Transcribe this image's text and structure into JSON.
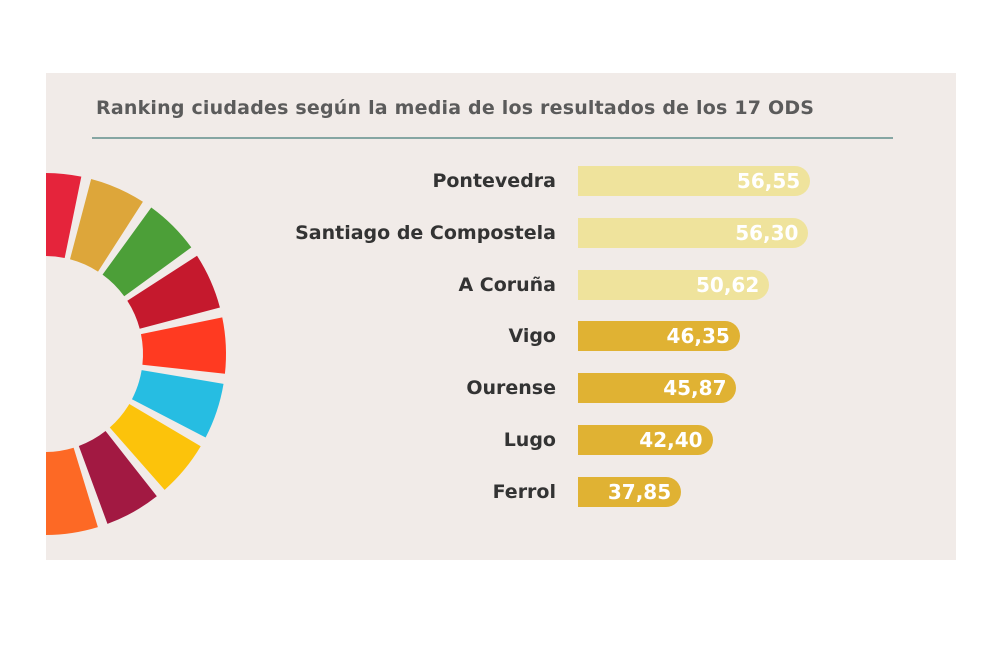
{
  "chart_data": {
    "type": "bar",
    "orientation": "horizontal",
    "title": "Ranking ciudades según la media de los resultados de los 17 ODS",
    "categories": [
      "Pontevedra",
      "Santiago de Compostela",
      "A Coruña",
      "Vigo",
      "Ourense",
      "Lugo",
      "Ferrol"
    ],
    "values": [
      56.55,
      56.3,
      50.62,
      46.35,
      45.87,
      42.4,
      37.85
    ],
    "value_labels": [
      "56,55",
      "56,30",
      "50,62",
      "46,35",
      "45,87",
      "42,40",
      "37,85"
    ],
    "highlight": [
      true,
      true,
      true,
      false,
      false,
      false,
      false
    ],
    "xlabel": "",
    "ylabel": "",
    "grid": false,
    "colors": {
      "top": "#efe39c",
      "rest": "#e0b233",
      "title": "#5b5b5b",
      "rule": "#86a6a3"
    }
  },
  "decoration": {
    "sdg_wheel_colors": [
      "#e5243b",
      "#dda63a",
      "#4c9f38",
      "#c5192d",
      "#ff3a21",
      "#26bde2",
      "#fcc30b",
      "#a21942",
      "#fd6925",
      "#dd1367",
      "#fd9d24",
      "#bf8b2e",
      "#3f7e44",
      "#0a97d9",
      "#56c02b",
      "#00689d",
      "#19486a"
    ]
  }
}
